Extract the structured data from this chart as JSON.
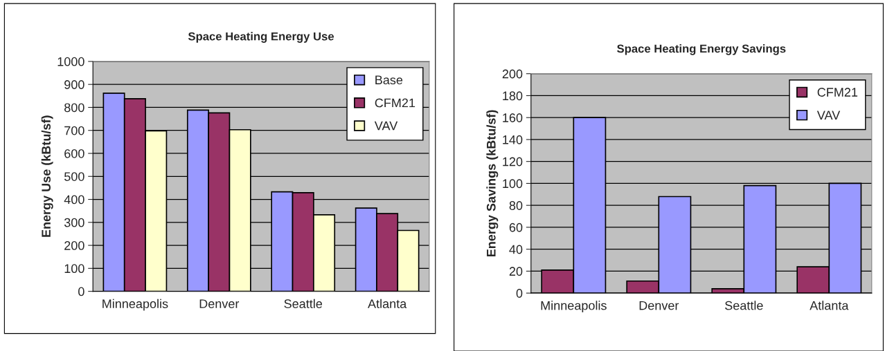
{
  "chart_data": [
    {
      "type": "bar",
      "title": "Space Heating Energy Use",
      "ylabel": "Energy Use (kBtu/sf)",
      "categories": [
        "Minneapolis",
        "Denver",
        "Seattle",
        "Atlanta"
      ],
      "series": [
        {
          "name": "Base",
          "color": "#9999ff",
          "values": [
            862,
            788,
            433,
            362
          ]
        },
        {
          "name": "CFM21",
          "color": "#993366",
          "values": [
            838,
            776,
            429,
            338
          ]
        },
        {
          "name": "VAV",
          "color": "#ffffcc",
          "values": [
            698,
            703,
            333,
            265
          ]
        }
      ],
      "ylim": [
        0,
        1000
      ],
      "yticks": [
        0,
        100,
        200,
        300,
        400,
        500,
        600,
        700,
        800,
        900,
        1000
      ],
      "grid": "y",
      "legend": "top right"
    },
    {
      "type": "bar",
      "title": "Space Heating Energy Savings",
      "ylabel": "Energy Savings (kBtu/sf)",
      "categories": [
        "Minneapolis",
        "Denver",
        "Seattle",
        "Atlanta"
      ],
      "series": [
        {
          "name": "CFM21",
          "color": "#993366",
          "values": [
            21,
            11,
            4,
            24
          ]
        },
        {
          "name": "VAV",
          "color": "#9999ff",
          "values": [
            160,
            88,
            98,
            100
          ]
        }
      ],
      "ylim": [
        0,
        200
      ],
      "yticks": [
        0,
        20,
        40,
        60,
        80,
        100,
        120,
        140,
        160,
        180,
        200
      ],
      "grid": "y",
      "legend": "top right"
    }
  ]
}
